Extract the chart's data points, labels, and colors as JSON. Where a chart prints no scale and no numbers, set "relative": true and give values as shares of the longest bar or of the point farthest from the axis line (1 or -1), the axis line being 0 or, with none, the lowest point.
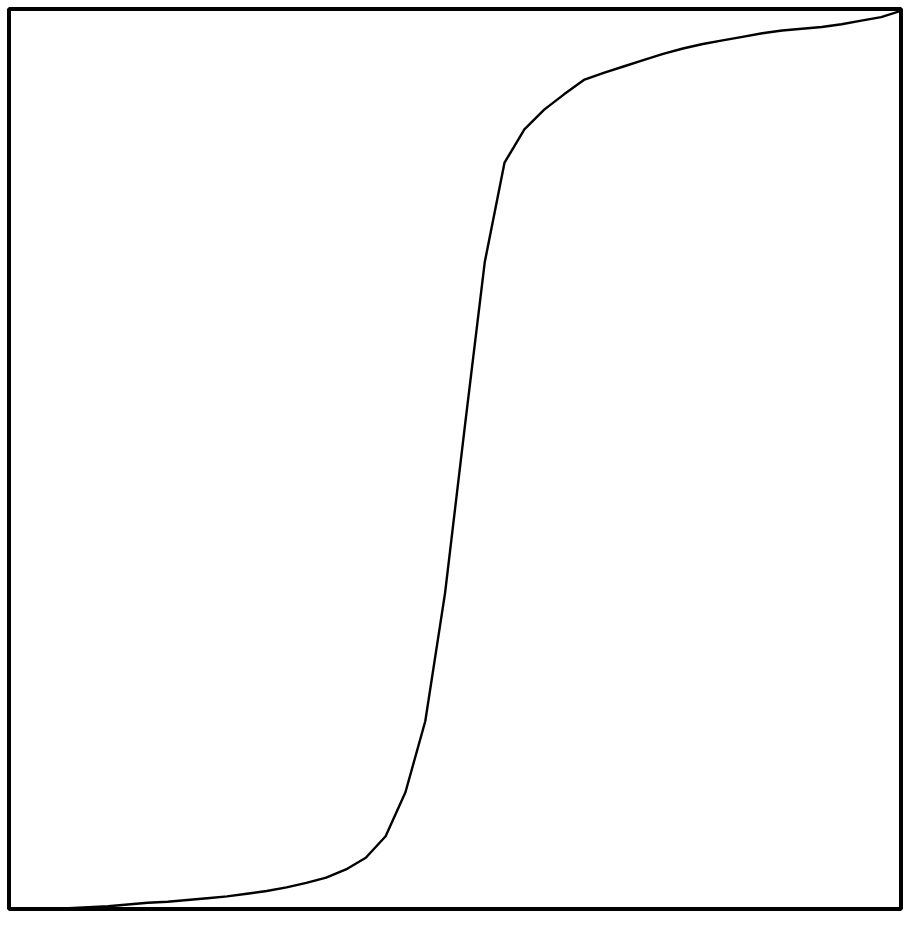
{
  "chart_data": {
    "type": "line",
    "relative": true,
    "grid": false,
    "marker": "none",
    "line_style": "solid",
    "categories": [
      null,
      null,
      null,
      null,
      null,
      null,
      null,
      null,
      null,
      null,
      null,
      null,
      null,
      null,
      null,
      null,
      null,
      null,
      null,
      null,
      null,
      null,
      null,
      null,
      null,
      null,
      null,
      null,
      null,
      null,
      null,
      null,
      null,
      null,
      null,
      null,
      null,
      null,
      null,
      null,
      null,
      null,
      null,
      null,
      null
    ],
    "series": [
      {
        "color": "#000000",
        "values": [
          0,
          0,
          0.001,
          0.002,
          0.003,
          0.005,
          0.007,
          0.008,
          0.01,
          0.012,
          0.014,
          0.017,
          0.02,
          0.024,
          0.029,
          0.035,
          0.044,
          0.057,
          0.081,
          0.13,
          0.209,
          0.352,
          0.538,
          0.72,
          0.831,
          0.868,
          0.89,
          0.907,
          0.923,
          0.931,
          0.938,
          0.945,
          0.952,
          0.958,
          0.963,
          0.967,
          0.971,
          0.975,
          0.978,
          0.98,
          0.982,
          0.985,
          0.989,
          0.993,
          1
        ]
      }
    ]
  }
}
